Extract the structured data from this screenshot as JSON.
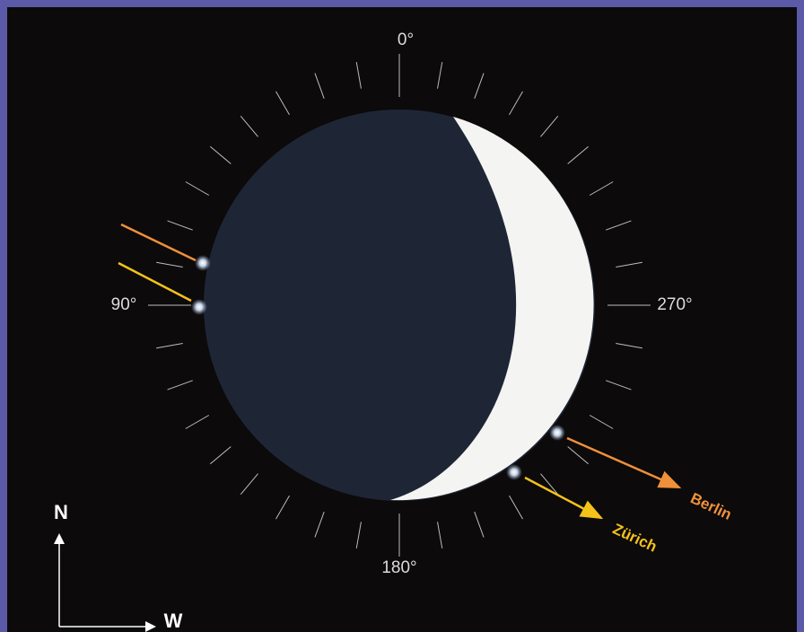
{
  "angles": {
    "top": "0°",
    "left": "90°",
    "bottom": "180°",
    "right": "270°"
  },
  "compass": {
    "north": "N",
    "west": "W"
  },
  "cities": {
    "berlin": "Berlin",
    "zurich": "Zürich"
  }
}
